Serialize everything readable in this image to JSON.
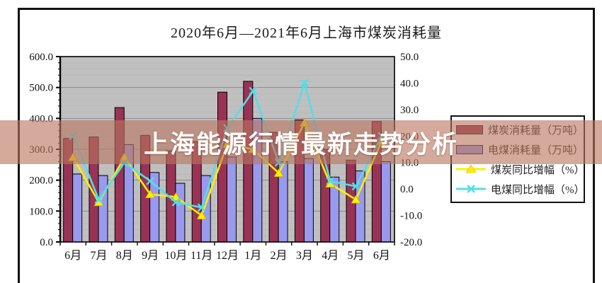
{
  "title": "2020年6月—2021年6月上海市煤炭消耗量",
  "overlay": {
    "text": "上海能源行情最新走势分析"
  },
  "colors": {
    "plot_background": "#c0c0c0",
    "grid_major": "#8a8a8a",
    "grid_minor": "#b9b9b9",
    "axis": "#111111",
    "banner": "rgba(186,118,96,0.62)",
    "coal_bar": "#993355",
    "power_coal_bar": "#9999ee",
    "coal_yoy_line": "#ffee00",
    "power_coal_yoy_line": "#55dde6"
  },
  "chart_data": {
    "type": "bar+line combo",
    "title": "2020年6月—2021年6月上海市煤炭消耗量",
    "categories": [
      "6月",
      "7月",
      "8月",
      "9月",
      "10月",
      "11月",
      "12月",
      "1月",
      "2月",
      "3月",
      "4月",
      "5月",
      "6月"
    ],
    "series": [
      {
        "name": "煤炭消耗量（万吨）",
        "type": "bar",
        "axis": "left",
        "color": "#993355",
        "values": [
          335,
          340,
          435,
          345,
          295,
          325,
          485,
          520,
          355,
          395,
          300,
          265,
          390
        ]
      },
      {
        "name": "电煤消耗量（万吨）",
        "type": "bar",
        "axis": "left",
        "color": "#9999ee",
        "values": [
          220,
          215,
          315,
          225,
          190,
          215,
          275,
          400,
          260,
          270,
          210,
          230,
          260
        ]
      },
      {
        "name": "煤炭同比增幅（%）",
        "type": "line",
        "axis": "right",
        "color": "#ffee00",
        "marker": "triangle",
        "values": [
          12,
          -5,
          12,
          -2,
          -3,
          -10,
          17,
          15,
          6,
          25,
          2,
          -4,
          18
        ]
      },
      {
        "name": "电煤同比增幅（%）",
        "type": "line",
        "axis": "right",
        "color": "#55dde6",
        "marker": "x",
        "values": [
          20,
          -4,
          10,
          3,
          -5,
          -7,
          23,
          37,
          10,
          40,
          3,
          1,
          20
        ]
      }
    ],
    "left_axis": {
      "min": 0,
      "max": 600,
      "step": 100,
      "minor_step": 20,
      "tick_labels": [
        "600.0",
        "500.0",
        "400.0",
        "300.0",
        "200.0",
        "100.0",
        "0.0"
      ]
    },
    "right_axis": {
      "min": -20,
      "max": 50,
      "step": 10,
      "tick_labels": [
        "50.0",
        "40.0",
        "30.0",
        "20.0",
        "10.0",
        "0.0",
        "-10.0",
        "-20.0"
      ]
    },
    "grid": true,
    "legend_position": "right"
  }
}
